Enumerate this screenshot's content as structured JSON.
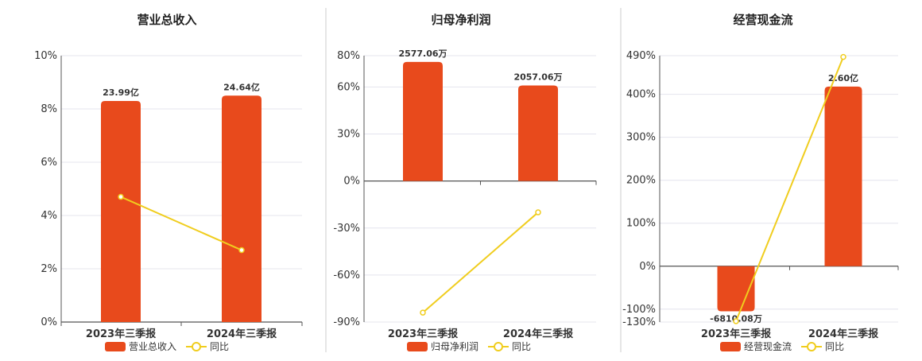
{
  "colors": {
    "bar": "#e84a1c",
    "line": "#f0cd1e",
    "grid": "#e4e4ee",
    "axis": "#555555",
    "divider": "#cccccc"
  },
  "chart_data": [
    {
      "type": "bar",
      "title": "营业总收入",
      "categories": [
        "2023年三季报",
        "2024年三季报"
      ],
      "bar_series_name": "营业总收入",
      "bar_values_pct": [
        8.3,
        8.5
      ],
      "bar_labels": [
        "23.99亿",
        "24.64亿"
      ],
      "line_series_name": "同比",
      "line_values_pct": [
        4.7,
        2.7
      ],
      "y_ticks": [
        0,
        2,
        4,
        6,
        8,
        10
      ],
      "y_tick_labels": [
        "0%",
        "2%",
        "4%",
        "6%",
        "8%",
        "10%"
      ],
      "ylim": [
        0,
        10
      ],
      "legend_position": "bottom"
    },
    {
      "type": "bar",
      "title": "归母净利润",
      "categories": [
        "2023年三季报",
        "2024年三季报"
      ],
      "bar_series_name": "归母净利润",
      "bar_values_pct": [
        76,
        61
      ],
      "bar_labels": [
        "2577.06万",
        "2057.06万"
      ],
      "line_series_name": "同比",
      "line_values_pct": [
        -84,
        -20
      ],
      "y_ticks": [
        -90,
        -60,
        -30,
        0,
        30,
        60,
        80
      ],
      "y_tick_labels": [
        "-90%",
        "-60%",
        "-30%",
        "0%",
        "30%",
        "60%",
        "80%"
      ],
      "ylim": [
        -90,
        80
      ],
      "legend_position": "bottom"
    },
    {
      "type": "bar",
      "title": "经营现金流",
      "categories": [
        "2023年三季报",
        "2024年三季报"
      ],
      "bar_series_name": "经营现金流",
      "bar_values_pct": [
        -105,
        418
      ],
      "bar_labels": [
        "-6810.08万",
        "2.60亿"
      ],
      "line_series_name": "同比",
      "line_values_pct": [
        -128,
        487
      ],
      "y_ticks": [
        -130,
        -100,
        0,
        100,
        200,
        300,
        400,
        490
      ],
      "y_tick_labels": [
        "-130%",
        "-100%",
        "0%",
        "100%",
        "200%",
        "300%",
        "400%",
        "490%"
      ],
      "ylim": [
        -130,
        490
      ],
      "legend_position": "bottom"
    }
  ]
}
